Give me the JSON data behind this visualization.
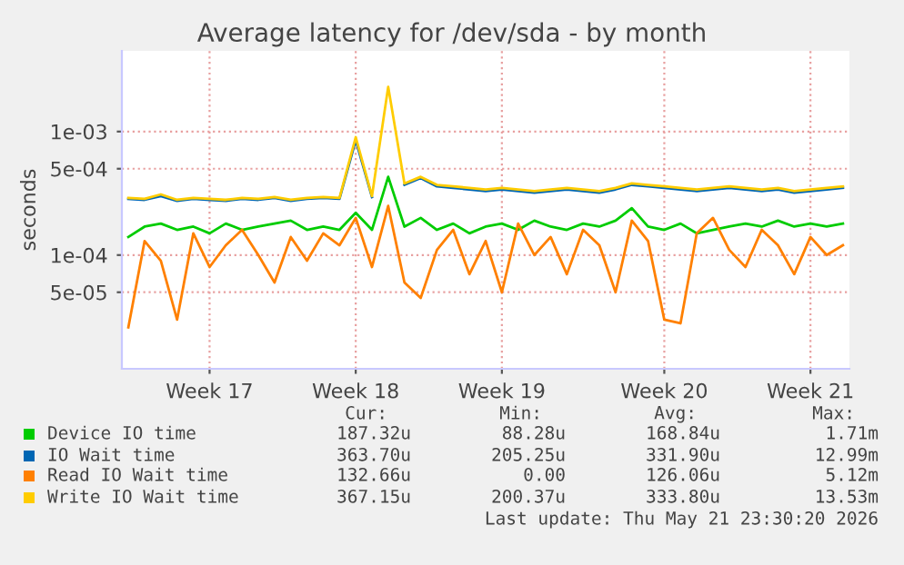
{
  "chart_data": {
    "type": "line",
    "title": "Average latency for /dev/sda - by month",
    "ylabel": "seconds",
    "log": "y",
    "grid": true,
    "legend": "bottom",
    "line_style": "solid",
    "ylim": [
      1.2e-05,
      0.0045
    ],
    "yticks": [
      {
        "value": 5e-05,
        "label": "5e-05"
      },
      {
        "value": 0.0001,
        "label": "1e-04"
      },
      {
        "value": 0.0005,
        "label": "5e-04"
      },
      {
        "value": 0.001,
        "label": "1e-03"
      }
    ],
    "categories": [
      null,
      null,
      null,
      null,
      null,
      "Week 17",
      null,
      null,
      null,
      null,
      null,
      null,
      null,
      null,
      "Week 18",
      null,
      null,
      null,
      null,
      null,
      null,
      null,
      null,
      "Week 19",
      null,
      null,
      null,
      null,
      null,
      null,
      null,
      null,
      null,
      "Week 20",
      null,
      null,
      null,
      null,
      null,
      null,
      null,
      null,
      "Week 21",
      null,
      null
    ],
    "series": [
      {
        "name": "Device IO time",
        "color": "#00cc00",
        "values": [
          0.00014,
          0.00017,
          0.00018,
          0.00016,
          0.00017,
          0.00015,
          0.00018,
          0.00016,
          0.00017,
          0.00018,
          0.00019,
          0.00016,
          0.00017,
          0.00016,
          0.00022,
          0.00016,
          0.00043,
          0.00017,
          0.0002,
          0.00016,
          0.00018,
          0.00015,
          0.00017,
          0.00018,
          0.00016,
          0.00019,
          0.00017,
          0.00016,
          0.00018,
          0.00017,
          0.00019,
          0.00024,
          0.00017,
          0.00016,
          0.00018,
          0.00015,
          0.00016,
          0.00017,
          0.00018,
          0.00017,
          0.00019,
          0.00017,
          0.00018,
          0.00017,
          0.00018
        ]
      },
      {
        "name": "IO Wait time",
        "color": "#0066b3",
        "values": [
          0.000285,
          0.00028,
          0.0003,
          0.000275,
          0.000285,
          0.00028,
          0.000275,
          0.000285,
          0.00028,
          0.00029,
          0.000275,
          0.000285,
          0.00029,
          0.000285,
          0.00085,
          0.000295,
          null,
          0.00037,
          0.00042,
          0.00036,
          0.00035,
          0.00034,
          0.00033,
          0.00034,
          0.00033,
          0.00032,
          0.00033,
          0.00034,
          0.00033,
          0.00032,
          0.00034,
          0.00037,
          0.00036,
          0.00035,
          0.00034,
          0.00033,
          0.00034,
          0.00035,
          0.00034,
          0.00033,
          0.00034,
          0.00032,
          0.00033,
          0.00034,
          0.00035
        ]
      },
      {
        "name": "Read IO Wait time",
        "color": "#ff8000",
        "values": [
          2.6e-05,
          0.00013,
          9e-05,
          3e-05,
          0.00015,
          8e-05,
          0.00012,
          0.00016,
          0.0001,
          6e-05,
          0.00014,
          9e-05,
          0.00015,
          0.00012,
          0.0002,
          8e-05,
          0.00025,
          6e-05,
          4.5e-05,
          0.00011,
          0.00016,
          7e-05,
          0.00013,
          5e-05,
          0.00018,
          0.0001,
          0.00014,
          7e-05,
          0.00016,
          0.00012,
          5e-05,
          0.00019,
          0.00013,
          3e-05,
          2.8e-05,
          0.00015,
          0.0002,
          0.00011,
          8e-05,
          0.00016,
          0.00012,
          7e-05,
          0.00014,
          0.0001,
          0.00012
        ]
      },
      {
        "name": "Write IO Wait time",
        "color": "#ffcc00",
        "values": [
          0.00029,
          0.000285,
          0.00031,
          0.00028,
          0.00029,
          0.000285,
          0.00028,
          0.00029,
          0.000285,
          0.000295,
          0.00028,
          0.00029,
          0.000295,
          0.00029,
          0.0009,
          0.0003,
          0.0023,
          0.00038,
          0.00043,
          0.00037,
          0.00036,
          0.00035,
          0.00034,
          0.00035,
          0.00034,
          0.00033,
          0.00034,
          0.00035,
          0.00034,
          0.00033,
          0.00035,
          0.00038,
          0.00037,
          0.00036,
          0.00035,
          0.00034,
          0.00035,
          0.00036,
          0.00035,
          0.00034,
          0.00035,
          0.00033,
          0.00034,
          0.00035,
          0.00036
        ]
      }
    ],
    "annotations": [
      "Cur:",
      "Min:",
      "Avg:",
      "Max:",
      "187.32u",
      "88.28u",
      "168.84u",
      "1.71m",
      "363.70u",
      "205.25u",
      "331.90u",
      "12.99m",
      "132.66u",
      "0.00",
      "126.06u",
      "5.12m",
      "367.15u",
      "200.37u",
      "333.80u",
      "13.53m",
      "Last update: Thu May 21 23:30:20 2026"
    ]
  }
}
